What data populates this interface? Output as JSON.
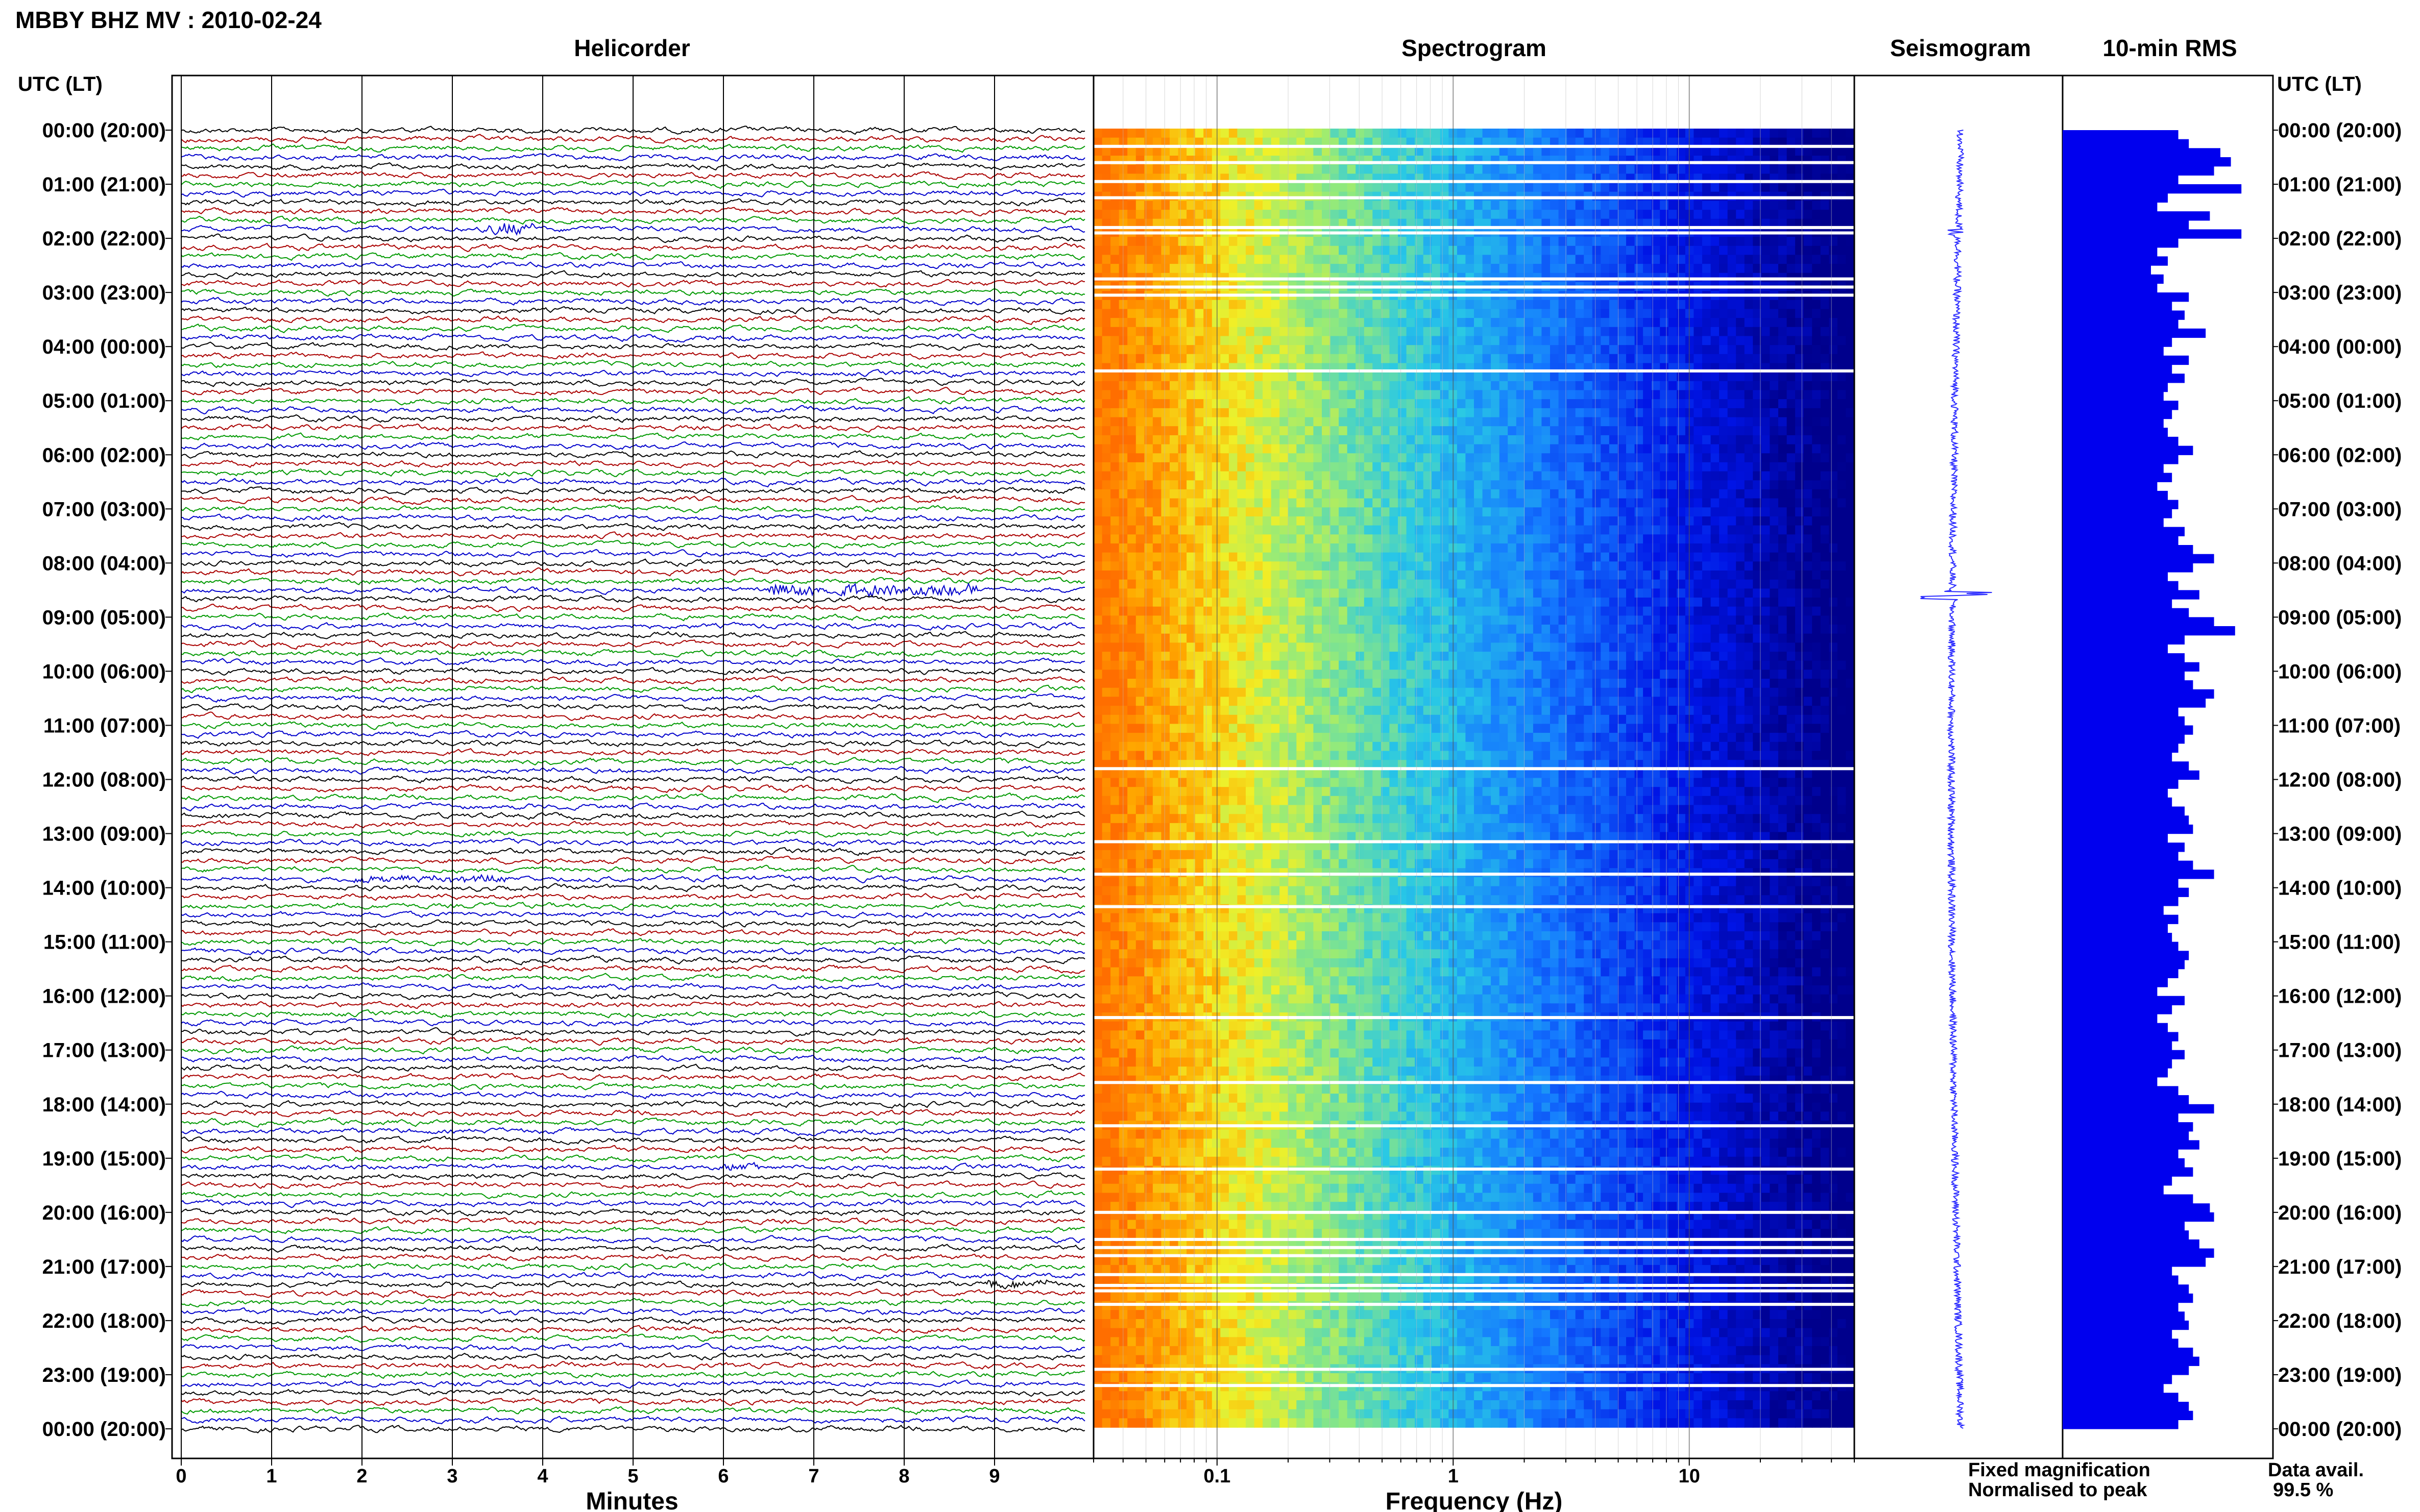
{
  "title": "MBBY BHZ MV : 2010-02-24",
  "panels": {
    "helicorder": "Helicorder",
    "spectrogram": "Spectrogram",
    "seismogram": "Seismogram",
    "rms": "10-min RMS"
  },
  "axis": {
    "time_header_left": "UTC (LT)",
    "time_header_right": "UTC (LT)",
    "minutes_label": "Minutes",
    "frequency_label": "Frequency (Hz)"
  },
  "legend": {
    "fixed": "Fixed magnification",
    "normalised": "Normalised to peak",
    "fixed_color": "#1a1aff",
    "normalised_color": "#ff1a1a",
    "data_avail_label": "Data avail.",
    "data_avail_value": "99.5 %"
  },
  "colors": {
    "trace_cycle": [
      "#000000",
      "#aa0000",
      "#009900",
      "#0000cc"
    ],
    "rms_bar": "#0000ee",
    "seismogram": "#2a2aff"
  },
  "chart_data": [
    {
      "type": "line",
      "title": "Helicorder",
      "xlabel": "Minutes",
      "x_ticks": [
        "0",
        "1",
        "2",
        "3",
        "4",
        "5",
        "6",
        "7",
        "8",
        "9"
      ],
      "xlim": [
        0,
        10
      ],
      "rows_per_hour": 6,
      "time_ticks": [
        "00:00 (20:00)",
        "01:00 (21:00)",
        "02:00 (22:00)",
        "03:00 (23:00)",
        "04:00 (00:00)",
        "05:00 (01:00)",
        "06:00 (02:00)",
        "07:00 (03:00)",
        "08:00 (04:00)",
        "09:00 (05:00)",
        "10:00 (06:00)",
        "11:00 (07:00)",
        "12:00 (08:00)",
        "13:00 (09:00)",
        "14:00 (10:00)",
        "15:00 (11:00)",
        "16:00 (12:00)",
        "17:00 (13:00)",
        "18:00 (14:00)",
        "19:00 (15:00)",
        "20:00 (16:00)",
        "21:00 (17:00)",
        "22:00 (18:00)",
        "23:00 (19:00)",
        "00:00 (20:00)"
      ],
      "events": [
        {
          "hour": 1.8,
          "minute_start": 3.4,
          "minute_end": 3.9,
          "amplitude": 3.0
        },
        {
          "hour": 8.5,
          "minute_start": 6.5,
          "minute_end": 8.8,
          "amplitude": 2.5
        },
        {
          "hour": 13.8,
          "minute_start": 1.9,
          "minute_end": 3.6,
          "amplitude": 1.5
        },
        {
          "hour": 19.2,
          "minute_start": 5.9,
          "minute_end": 6.4,
          "amplitude": 1.2
        },
        {
          "hour": 21.3,
          "minute_start": 8.9,
          "minute_end": 9.6,
          "amplitude": 1.8
        }
      ]
    },
    {
      "type": "heatmap",
      "title": "Spectrogram",
      "xlabel": "Frequency (Hz)",
      "x_scale": "log",
      "x_ticks": [
        "0.1",
        "1",
        "10"
      ],
      "xlim": [
        0.03,
        50
      ],
      "gap_hours": [
        0.3,
        0.6,
        0.95,
        1.25,
        1.8,
        1.9,
        2.75,
        2.9,
        3.05,
        4.45,
        11.8,
        13.15,
        13.75,
        14.35,
        16.4,
        17.6,
        18.4,
        19.2,
        20.0,
        20.5,
        20.65,
        20.8,
        21.15,
        21.35,
        21.45,
        21.7,
        22.9,
        23.2
      ]
    },
    {
      "type": "line",
      "title": "Seismogram",
      "events": [
        {
          "hour": 1.9,
          "amplitude": 0.3
        },
        {
          "hour": 8.6,
          "amplitude": 1.0
        }
      ]
    },
    {
      "type": "bar",
      "title": "10-min RMS",
      "orientation": "horizontal",
      "values": [
        0.55,
        0.6,
        0.75,
        0.8,
        0.72,
        0.55,
        0.85,
        0.5,
        0.45,
        0.7,
        0.6,
        0.85,
        0.55,
        0.45,
        0.5,
        0.42,
        0.48,
        0.45,
        0.6,
        0.52,
        0.58,
        0.55,
        0.68,
        0.52,
        0.48,
        0.6,
        0.52,
        0.58,
        0.5,
        0.48,
        0.55,
        0.52,
        0.48,
        0.5,
        0.55,
        0.62,
        0.55,
        0.48,
        0.52,
        0.45,
        0.5,
        0.55,
        0.52,
        0.48,
        0.58,
        0.55,
        0.62,
        0.72,
        0.62,
        0.5,
        0.55,
        0.65,
        0.52,
        0.6,
        0.72,
        0.82,
        0.58,
        0.5,
        0.58,
        0.65,
        0.58,
        0.62,
        0.72,
        0.68,
        0.55,
        0.58,
        0.62,
        0.58,
        0.55,
        0.52,
        0.6,
        0.65,
        0.55,
        0.5,
        0.52,
        0.58,
        0.6,
        0.62,
        0.5,
        0.58,
        0.55,
        0.62,
        0.72,
        0.55,
        0.6,
        0.55,
        0.48,
        0.55,
        0.5,
        0.52,
        0.55,
        0.6,
        0.58,
        0.55,
        0.5,
        0.45,
        0.58,
        0.52,
        0.45,
        0.5,
        0.55,
        0.52,
        0.58,
        0.52,
        0.5,
        0.45,
        0.55,
        0.6,
        0.72,
        0.55,
        0.62,
        0.6,
        0.65,
        0.55,
        0.58,
        0.62,
        0.52,
        0.48,
        0.62,
        0.7,
        0.72,
        0.58,
        0.6,
        0.65,
        0.72,
        0.68,
        0.52,
        0.55,
        0.6,
        0.62,
        0.55,
        0.58,
        0.6,
        0.52,
        0.55,
        0.62,
        0.65,
        0.6,
        0.52,
        0.48,
        0.55,
        0.6,
        0.62,
        0.55
      ]
    }
  ]
}
